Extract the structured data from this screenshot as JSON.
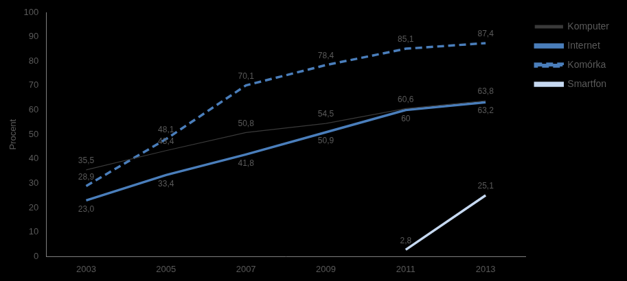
{
  "chart_data": {
    "type": "line",
    "ylabel": "Procent",
    "categories": [
      "2003",
      "2005",
      "2007",
      "2009",
      "2011",
      "2013"
    ],
    "ylim": [
      0,
      100
    ],
    "yticks": [
      0,
      10,
      20,
      30,
      40,
      50,
      60,
      70,
      80,
      90,
      100
    ],
    "grid": false,
    "legend": "right",
    "data_labels": true,
    "series": [
      {
        "name": "Komputer",
        "color": "#3a3a3a",
        "line_style": "solid",
        "values": [
          35.5,
          43.4,
          50.8,
          54.5,
          60.6,
          63.8
        ],
        "value_labels": [
          "35,5",
          "43,4",
          "50,8",
          "54,5",
          "60,6",
          "63,8"
        ]
      },
      {
        "name": "Internet",
        "color": "#4a7ebb",
        "line_style": "solid",
        "values": [
          23.0,
          33.4,
          41.8,
          50.9,
          60,
          63.2
        ],
        "value_labels": [
          "23,0",
          "33,4",
          "41,8",
          "50,9",
          "60",
          "63,2"
        ]
      },
      {
        "name": "Komórka",
        "color": "#4a7ebb",
        "line_style": "dashed",
        "values": [
          28.9,
          48.1,
          70.1,
          78.4,
          85.1,
          87.4
        ],
        "value_labels": [
          "28,9",
          "48,1",
          "70,1",
          "78,4",
          "85,1",
          "87,4"
        ]
      },
      {
        "name": "Smartfon",
        "color": "#c6d9f1",
        "line_style": "solid",
        "values": [
          null,
          null,
          null,
          null,
          2.8,
          25.1
        ],
        "value_labels": [
          null,
          null,
          null,
          null,
          "2,8",
          "25,1"
        ]
      }
    ]
  }
}
